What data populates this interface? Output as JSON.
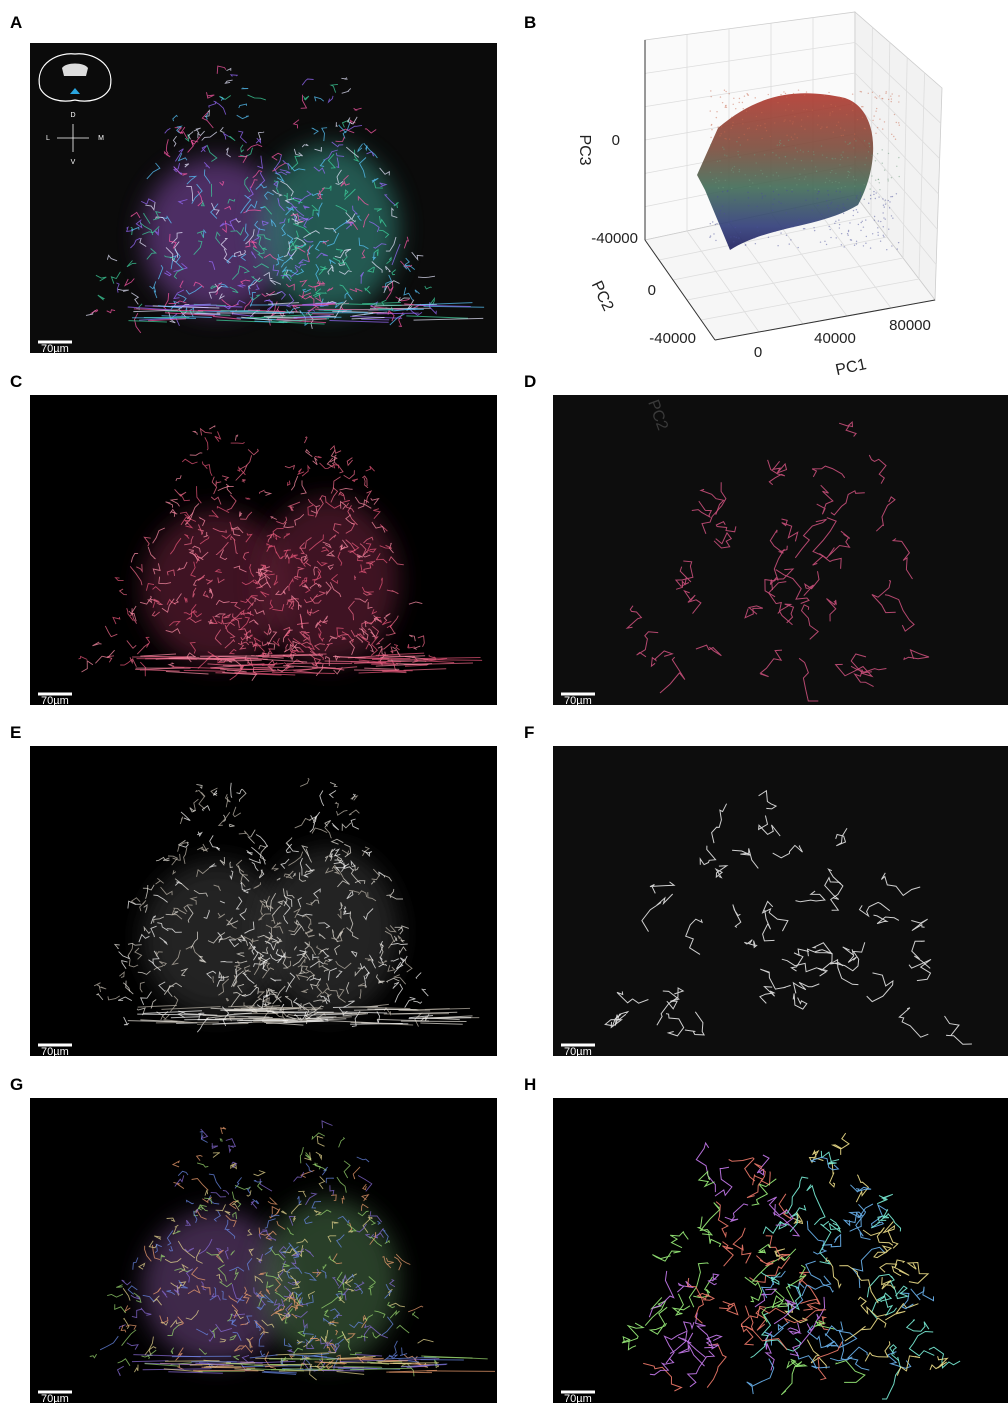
{
  "panels": [
    {
      "letter": "A",
      "scale_bar": "70µm"
    },
    {
      "letter": "B"
    },
    {
      "letter": "C",
      "scale_bar": "70µm"
    },
    {
      "letter": "D",
      "scale_bar": "70µm",
      "overlay_text": "PC2"
    },
    {
      "letter": "E",
      "scale_bar": "70µm"
    },
    {
      "letter": "F",
      "scale_bar": "70µm"
    },
    {
      "letter": "G",
      "scale_bar": "70µm"
    },
    {
      "letter": "H",
      "scale_bar": "70µm"
    }
  ],
  "orientation": {
    "dorsal": "D",
    "ventral": "V",
    "lateral": "L",
    "medial": "M"
  },
  "pca_plot": {
    "x_label": "PC1",
    "x_ticks": [
      0,
      40000,
      80000
    ],
    "y_label": "PC2",
    "y_ticks": [
      -40000,
      0
    ],
    "z_label": "PC3",
    "z_ticks": [
      -40000,
      0
    ]
  }
}
